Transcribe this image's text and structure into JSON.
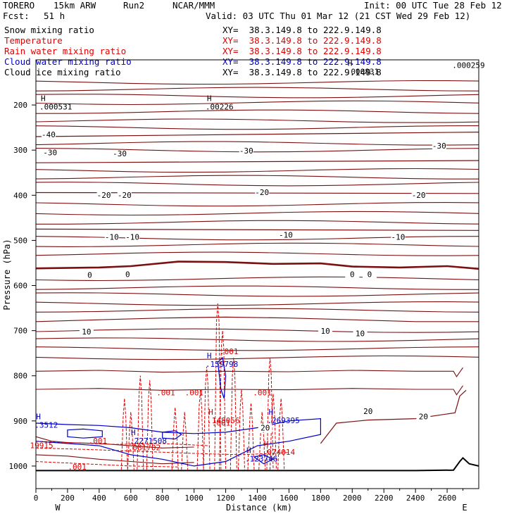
{
  "header": {
    "model": "TORERO",
    "resolution": "15km ARW",
    "run": "Run2",
    "org": "NCAR/MMM",
    "init": "Init: 00 UTC Tue 28 Feb 12",
    "fcst_label": "Fcst:",
    "fcst_value": "51 h",
    "valid": "Valid: 03 UTC Thu 01 Mar 12 (21 CST Wed 29 Feb 12)"
  },
  "fields": [
    {
      "name": "Snow mixing ratio",
      "xy": "XY=  38.3.149.8 to 222.9.149.8",
      "color": "#000000"
    },
    {
      "name": "Temperature",
      "xy": "XY=  38.3.149.8 to 222.9.149.8",
      "color": "#e00000"
    },
    {
      "name": "Rain water mixing ratio",
      "xy": "XY=  38.3.149.8 to 222.9.149.8",
      "color": "#e00000"
    },
    {
      "name": "Cloud water mixing ratio",
      "xy": "XY=  38.3.149.8 to 222.9.149.8",
      "color": "#0000c8"
    },
    {
      "name": "Cloud ice mixing ratio",
      "xy": "XY=  38.3.149.8 to 222.9.149.8",
      "color": "#000000"
    }
  ],
  "colors": {
    "temperature": "#7a1010",
    "rain": "#e00000",
    "cloud_water": "#0000c8",
    "terrain": "#000000"
  },
  "chart_data": {
    "type": "line",
    "xlabel": "Distance (km)",
    "ylabel": "Pressure (hPa)",
    "xlim": [
      0,
      2800
    ],
    "ylim": [
      1050,
      100
    ],
    "x_ticks": [
      0,
      200,
      400,
      600,
      800,
      1000,
      1200,
      1400,
      1600,
      1800,
      2000,
      2200,
      2400,
      2600
    ],
    "y_ticks": [
      200,
      300,
      400,
      500,
      600,
      700,
      800,
      900,
      1000
    ],
    "x_end_labels": {
      "left": "W",
      "right": "E"
    },
    "isotherms": [
      {
        "label": "0",
        "bold": true,
        "points": [
          [
            0,
            562
          ],
          [
            400,
            560
          ],
          [
            600,
            557
          ],
          [
            900,
            547
          ],
          [
            1200,
            548
          ],
          [
            1500,
            552
          ],
          [
            1800,
            551
          ],
          [
            2000,
            558
          ],
          [
            2300,
            560
          ],
          [
            2600,
            557
          ],
          [
            2800,
            563
          ]
        ]
      },
      {
        "label": "-10",
        "points": [
          [
            0,
            475
          ],
          [
            2800,
            478
          ]
        ]
      },
      {
        "label": "-20",
        "points": [
          [
            0,
            394
          ],
          [
            2800,
            396
          ]
        ]
      },
      {
        "label": "-30",
        "points": [
          [
            0,
            328
          ],
          [
            2800,
            323
          ]
        ]
      },
      {
        "label": "-40",
        "points": [
          [
            0,
            270
          ],
          [
            2800,
            260
          ]
        ]
      },
      {
        "label": "10",
        "points": [
          [
            0,
            680
          ],
          [
            400,
            676
          ],
          [
            800,
            672
          ],
          [
            1200,
            670
          ],
          [
            1600,
            672
          ],
          [
            2000,
            676
          ],
          [
            2400,
            680
          ],
          [
            2800,
            680
          ]
        ]
      },
      {
        "label": "20",
        "points": [
          [
            1800,
            950
          ],
          [
            1900,
            905
          ],
          [
            2100,
            898
          ],
          [
            2400,
            895
          ],
          [
            2650,
            882
          ],
          [
            2680,
            845
          ],
          [
            2720,
            832
          ]
        ]
      }
    ],
    "temp_labels": [
      {
        "text": "-40",
        "x": 80,
        "p": 270
      },
      {
        "text": "-30",
        "x": 90,
        "p": 310
      },
      {
        "text": "-30",
        "x": 530,
        "p": 312
      },
      {
        "text": "-30",
        "x": 1330,
        "p": 306
      },
      {
        "text": "-30",
        "x": 2550,
        "p": 295
      },
      {
        "text": "-20",
        "x": 430,
        "p": 404
      },
      {
        "text": "-20",
        "x": 560,
        "p": 404
      },
      {
        "text": "-20",
        "x": 1430,
        "p": 398
      },
      {
        "text": "-20",
        "x": 2420,
        "p": 404
      },
      {
        "text": "-10",
        "x": 480,
        "p": 497
      },
      {
        "text": "-10",
        "x": 610,
        "p": 497
      },
      {
        "text": "-10",
        "x": 1580,
        "p": 492
      },
      {
        "text": "-10",
        "x": 2290,
        "p": 497
      },
      {
        "text": "0",
        "x": 340,
        "p": 581
      },
      {
        "text": "0",
        "x": 580,
        "p": 580
      },
      {
        "text": "0",
        "x": 2000,
        "p": 580
      },
      {
        "text": "0",
        "x": 2110,
        "p": 580
      },
      {
        "text": "10",
        "x": 320,
        "p": 707
      },
      {
        "text": "10",
        "x": 1830,
        "p": 705
      },
      {
        "text": "10",
        "x": 2050,
        "p": 711
      },
      {
        "text": "20",
        "x": 2100,
        "p": 883
      },
      {
        "text": "20",
        "x": 2450,
        "p": 895
      },
      {
        "text": "20",
        "x": 1450,
        "p": 920
      }
    ],
    "annotations": [
      {
        "text": ".000531",
        "x": 120,
        "p": 210,
        "color": "#000000",
        "marker": "H"
      },
      {
        "text": ".00226",
        "x": 1170,
        "p": 210,
        "color": "#000000",
        "marker": "H"
      },
      {
        "text": ".000259",
        "x": 2730,
        "p": 118,
        "color": "#000000"
      },
      {
        "text": ".000831",
        "x": 2060,
        "p": 132,
        "color": "#000000",
        "marker": "H"
      },
      {
        "text": ".159798",
        "x": 1170,
        "p": 780,
        "color": "#0000c8",
        "marker": "H"
      },
      {
        "text": ".269395",
        "x": 1560,
        "p": 905,
        "color": "#0000c8",
        "marker": "H"
      },
      {
        "text": ".148056",
        "x": 1180,
        "p": 905,
        "color": "#e00000",
        "marker": "H"
      },
      {
        "text": ".2271508",
        "x": 690,
        "p": 950,
        "color": "#0000c8",
        "marker": "H"
      },
      {
        "text": ".081702",
        "x": 680,
        "p": 965,
        "color": "#e00000"
      },
      {
        "text": ".123746",
        "x": 1420,
        "p": 990,
        "color": "#0000c8",
        "marker": "H"
      },
      {
        "text": ".074014",
        "x": 1530,
        "p": 975,
        "color": "#e00000",
        "marker": "H"
      },
      {
        "text": ".3512",
        "x": 90,
        "p": 915,
        "color": "#0000c8",
        "marker": "H"
      },
      {
        "text": "19915",
        "x": 60,
        "p": 960,
        "color": "#e00000"
      },
      {
        "text": ".001",
        "x": 1260,
        "p": 752,
        "color": "#e00000"
      },
      {
        "text": ".001",
        "x": 860,
        "p": 843,
        "color": "#e00000"
      },
      {
        "text": ".001",
        "x": 1040,
        "p": 843,
        "color": "#e00000"
      },
      {
        "text": ".001",
        "x": 1470,
        "p": 843,
        "color": "#e00000"
      },
      {
        "text": ".001",
        "x": 430,
        "p": 950,
        "color": "#e00000"
      },
      {
        "text": ".001",
        "x": 1210,
        "p": 910,
        "color": "#e00000"
      },
      {
        "text": ".001",
        "x": 300,
        "p": 1008,
        "color": "#e00000"
      }
    ],
    "terrain": [
      [
        0,
        1010
      ],
      [
        600,
        1010
      ],
      [
        1200,
        1010
      ],
      [
        1800,
        1010
      ],
      [
        2400,
        1010
      ],
      [
        2640,
        1009
      ],
      [
        2680,
        990
      ],
      [
        2700,
        982
      ],
      [
        2740,
        995
      ],
      [
        2800,
        1000
      ]
    ]
  }
}
